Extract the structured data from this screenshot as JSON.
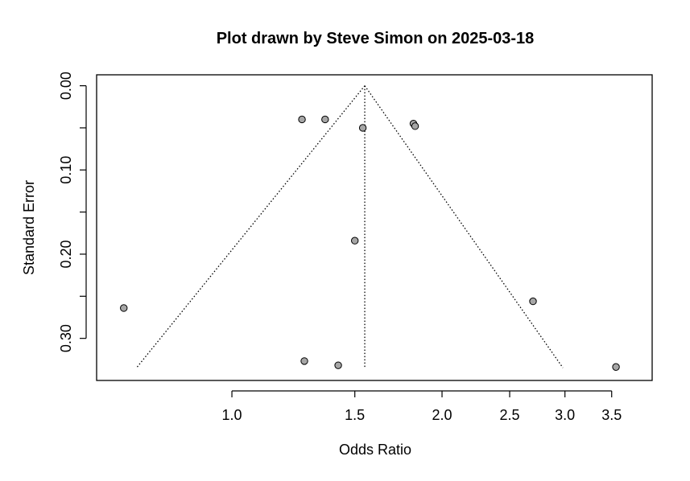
{
  "chart_data": {
    "type": "scatter",
    "subtype": "funnel-plot",
    "title": "Plot drawn by Steve Simon on 2025-03-18",
    "xlabel": "Odds Ratio",
    "ylabel": "Standard Error",
    "x_scale": "log",
    "y_reversed": true,
    "xlim": [
      0.64,
      4.0
    ],
    "ylim": [
      0.35,
      -0.013
    ],
    "x_ticks": [
      {
        "value": 1.0,
        "label": "1.0"
      },
      {
        "value": 1.5,
        "label": "1.5"
      },
      {
        "value": 2.0,
        "label": "2.0"
      },
      {
        "value": 2.5,
        "label": "2.5"
      },
      {
        "value": 3.0,
        "label": "3.0"
      },
      {
        "value": 3.5,
        "label": "3.5"
      }
    ],
    "y_ticks": [
      {
        "value": 0.0,
        "label": "0.00",
        "labeled": true
      },
      {
        "value": 0.05,
        "label": "",
        "labeled": false
      },
      {
        "value": 0.1,
        "label": "0.10",
        "labeled": true
      },
      {
        "value": 0.15,
        "label": "",
        "labeled": false
      },
      {
        "value": 0.2,
        "label": "0.20",
        "labeled": true
      },
      {
        "value": 0.25,
        "label": "",
        "labeled": false
      },
      {
        "value": 0.3,
        "label": "0.30",
        "labeled": true
      }
    ],
    "pooled_or": 1.55,
    "funnel_se_max": 0.335,
    "funnel_bottom_left_or": 0.73,
    "funnel_bottom_right_or": 2.98,
    "points": [
      {
        "or": 1.26,
        "se": 0.04
      },
      {
        "or": 1.36,
        "se": 0.04
      },
      {
        "or": 1.54,
        "se": 0.05
      },
      {
        "or": 1.82,
        "se": 0.045
      },
      {
        "or": 1.83,
        "se": 0.048
      },
      {
        "or": 1.5,
        "se": 0.184
      },
      {
        "or": 0.7,
        "se": 0.264
      },
      {
        "or": 2.7,
        "se": 0.256
      },
      {
        "or": 1.27,
        "se": 0.327
      },
      {
        "or": 1.42,
        "se": 0.332
      },
      {
        "or": 3.55,
        "se": 0.334
      }
    ],
    "grid": false,
    "point_color": "#a6a6a6"
  }
}
